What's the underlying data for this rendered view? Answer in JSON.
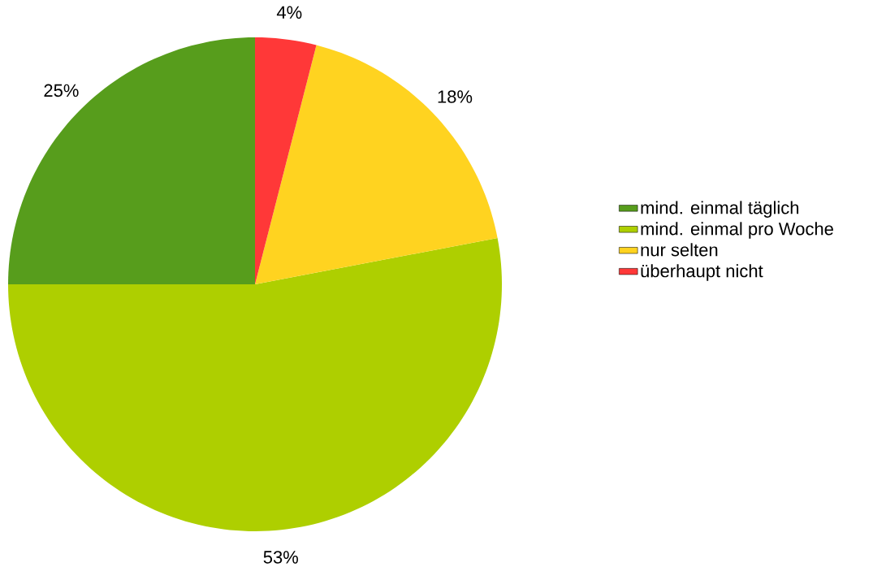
{
  "chart_data": {
    "type": "pie",
    "categories": [
      "mind. einmal täglich",
      "mind. einmal pro Woche",
      "nur selten",
      "überhaupt nicht"
    ],
    "values": [
      25,
      53,
      18,
      4
    ],
    "value_labels": [
      "25%",
      "53%",
      "18%",
      "4%"
    ],
    "colors": [
      "#579d1c",
      "#aecf00",
      "#ffd320",
      "#ff3838"
    ],
    "legend": "right"
  }
}
